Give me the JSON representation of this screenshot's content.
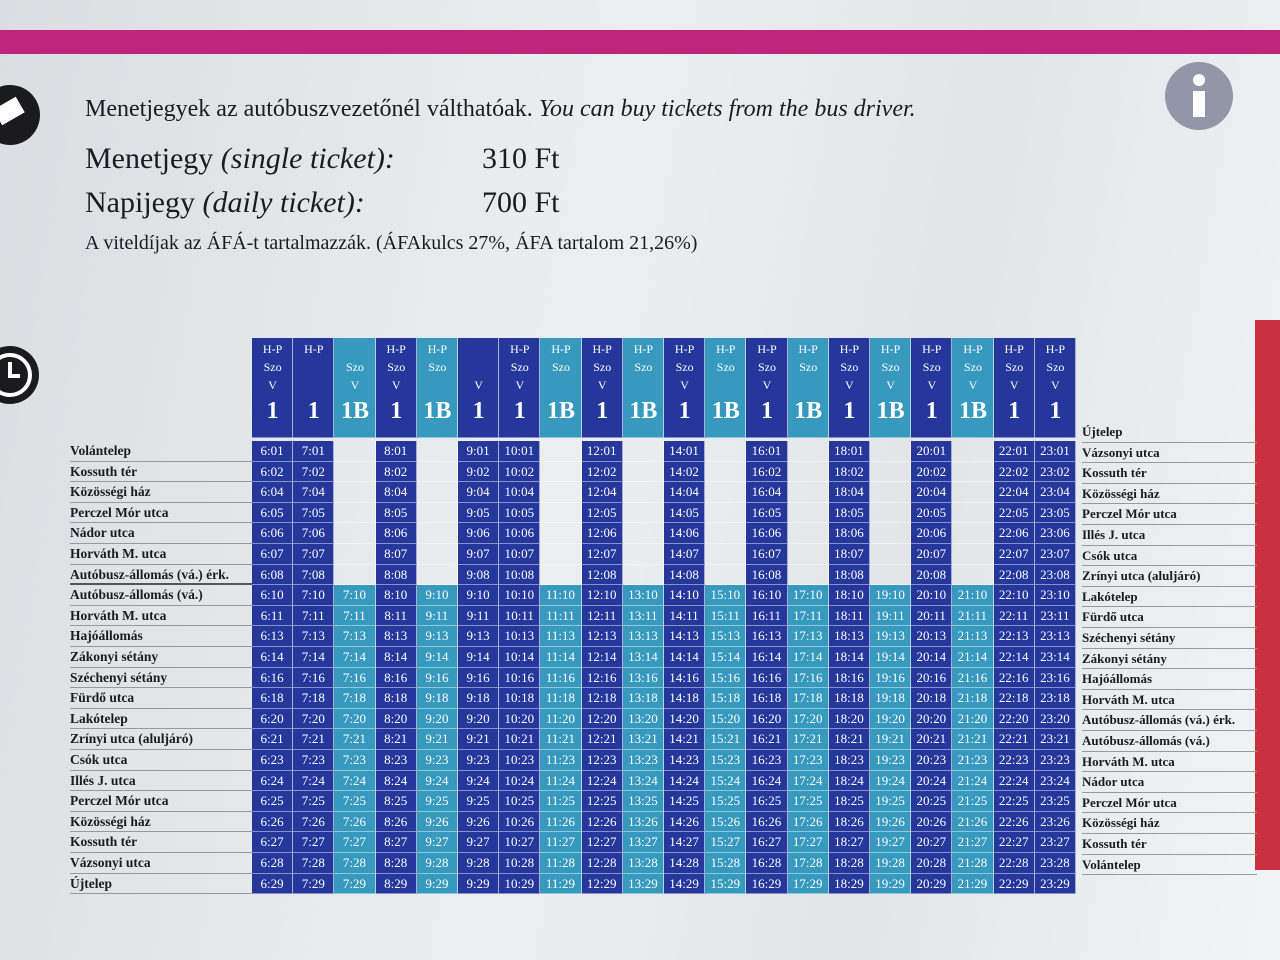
{
  "header": {
    "info": "Menetjegyek az autóbuszvezetőnél válthatóak.",
    "info_en": "You can buy tickets from the bus driver.",
    "tickets": [
      {
        "name": "Menetjegy",
        "name_en": "(single ticket):",
        "price": "310 Ft"
      },
      {
        "name": "Napijegy",
        "name_en": "(daily ticket):",
        "price": "700 Ft"
      }
    ],
    "vat_note": "A viteldíjak az ÁFÁ-t tartalmazzák. (ÁFAkulcs 27%, ÁFA tartalom 21,26%)"
  },
  "table": {
    "columns": [
      {
        "days": [
          "H-P",
          "Szo",
          "V"
        ],
        "route": "1"
      },
      {
        "days": [
          "H-P",
          null,
          null
        ],
        "route": "1"
      },
      {
        "days": [
          null,
          "Szo",
          "V"
        ],
        "route": "1B"
      },
      {
        "days": [
          "H-P",
          "Szo",
          "V"
        ],
        "route": "1"
      },
      {
        "days": [
          "H-P",
          "Szo",
          null
        ],
        "route": "1B"
      },
      {
        "days": [
          null,
          null,
          "V"
        ],
        "route": "1"
      },
      {
        "days": [
          "H-P",
          "Szo",
          "V"
        ],
        "route": "1"
      },
      {
        "days": [
          "H-P",
          "Szo",
          null
        ],
        "route": "1B"
      },
      {
        "days": [
          "H-P",
          "Szo",
          "V"
        ],
        "route": "1"
      },
      {
        "days": [
          "H-P",
          "Szo",
          null
        ],
        "route": "1B"
      },
      {
        "days": [
          "H-P",
          "Szo",
          "V"
        ],
        "route": "1"
      },
      {
        "days": [
          "H-P",
          "Szo",
          null
        ],
        "route": "1B"
      },
      {
        "days": [
          "H-P",
          "Szo",
          "V"
        ],
        "route": "1"
      },
      {
        "days": [
          "H-P",
          "Szo",
          null
        ],
        "route": "1B"
      },
      {
        "days": [
          "H-P",
          "Szo",
          "V"
        ],
        "route": "1"
      },
      {
        "days": [
          "H-P",
          "Szo",
          "V"
        ],
        "route": "1B"
      },
      {
        "days": [
          "H-P",
          "Szo",
          "V"
        ],
        "route": "1"
      },
      {
        "days": [
          "H-P",
          "Szo",
          "V"
        ],
        "route": "1B"
      },
      {
        "days": [
          "H-P",
          "Szo",
          "V"
        ],
        "route": "1"
      },
      {
        "days": [
          "H-P",
          "Szo",
          "V"
        ],
        "route": "1"
      }
    ],
    "rows": [
      {
        "stop": "Volántelep",
        "times": [
          "6:01",
          "7:01",
          null,
          "8:01",
          null,
          "9:01",
          "10:01",
          null,
          "12:01",
          null,
          "14:01",
          null,
          "16:01",
          null,
          "18:01",
          null,
          "20:01",
          null,
          "22:01",
          "23:01"
        ]
      },
      {
        "stop": "Kossuth tér",
        "times": [
          "6:02",
          "7:02",
          null,
          "8:02",
          null,
          "9:02",
          "10:02",
          null,
          "12:02",
          null,
          "14:02",
          null,
          "16:02",
          null,
          "18:02",
          null,
          "20:02",
          null,
          "22:02",
          "23:02"
        ]
      },
      {
        "stop": "Közösségi ház",
        "times": [
          "6:04",
          "7:04",
          null,
          "8:04",
          null,
          "9:04",
          "10:04",
          null,
          "12:04",
          null,
          "14:04",
          null,
          "16:04",
          null,
          "18:04",
          null,
          "20:04",
          null,
          "22:04",
          "23:04"
        ]
      },
      {
        "stop": "Perczel Mór utca",
        "times": [
          "6:05",
          "7:05",
          null,
          "8:05",
          null,
          "9:05",
          "10:05",
          null,
          "12:05",
          null,
          "14:05",
          null,
          "16:05",
          null,
          "18:05",
          null,
          "20:05",
          null,
          "22:05",
          "23:05"
        ]
      },
      {
        "stop": "Nádor utca",
        "times": [
          "6:06",
          "7:06",
          null,
          "8:06",
          null,
          "9:06",
          "10:06",
          null,
          "12:06",
          null,
          "14:06",
          null,
          "16:06",
          null,
          "18:06",
          null,
          "20:06",
          null,
          "22:06",
          "23:06"
        ]
      },
      {
        "stop": "Horváth M. utca",
        "times": [
          "6:07",
          "7:07",
          null,
          "8:07",
          null,
          "9:07",
          "10:07",
          null,
          "12:07",
          null,
          "14:07",
          null,
          "16:07",
          null,
          "18:07",
          null,
          "20:07",
          null,
          "22:07",
          "23:07"
        ]
      },
      {
        "stop": "Autóbusz-állomás (vá.) érk.",
        "times": [
          "6:08",
          "7:08",
          null,
          "8:08",
          null,
          "9:08",
          "10:08",
          null,
          "12:08",
          null,
          "14:08",
          null,
          "16:08",
          null,
          "18:08",
          null,
          "20:08",
          null,
          "22:08",
          "23:08"
        ]
      },
      {
        "stop": "Autóbusz-állomás (vá.)",
        "times": [
          "6:10",
          "7:10",
          "7:10",
          "8:10",
          "9:10",
          "9:10",
          "10:10",
          "11:10",
          "12:10",
          "13:10",
          "14:10",
          "15:10",
          "16:10",
          "17:10",
          "18:10",
          "19:10",
          "20:10",
          "21:10",
          "22:10",
          "23:10"
        ]
      },
      {
        "stop": "Horváth M. utca",
        "times": [
          "6:11",
          "7:11",
          "7:11",
          "8:11",
          "9:11",
          "9:11",
          "10:11",
          "11:11",
          "12:11",
          "13:11",
          "14:11",
          "15:11",
          "16:11",
          "17:11",
          "18:11",
          "19:11",
          "20:11",
          "21:11",
          "22:11",
          "23:11"
        ]
      },
      {
        "stop": "Hajóállomás",
        "times": [
          "6:13",
          "7:13",
          "7:13",
          "8:13",
          "9:13",
          "9:13",
          "10:13",
          "11:13",
          "12:13",
          "13:13",
          "14:13",
          "15:13",
          "16:13",
          "17:13",
          "18:13",
          "19:13",
          "20:13",
          "21:13",
          "22:13",
          "23:13"
        ]
      },
      {
        "stop": "Zákonyi sétány",
        "times": [
          "6:14",
          "7:14",
          "7:14",
          "8:14",
          "9:14",
          "9:14",
          "10:14",
          "11:14",
          "12:14",
          "13:14",
          "14:14",
          "15:14",
          "16:14",
          "17:14",
          "18:14",
          "19:14",
          "20:14",
          "21:14",
          "22:14",
          "23:14"
        ]
      },
      {
        "stop": "Széchenyi sétány",
        "times": [
          "6:16",
          "7:16",
          "7:16",
          "8:16",
          "9:16",
          "9:16",
          "10:16",
          "11:16",
          "12:16",
          "13:16",
          "14:16",
          "15:16",
          "16:16",
          "17:16",
          "18:16",
          "19:16",
          "20:16",
          "21:16",
          "22:16",
          "23:16"
        ]
      },
      {
        "stop": "Fürdő utca",
        "times": [
          "6:18",
          "7:18",
          "7:18",
          "8:18",
          "9:18",
          "9:18",
          "10:18",
          "11:18",
          "12:18",
          "13:18",
          "14:18",
          "15:18",
          "16:18",
          "17:18",
          "18:18",
          "19:18",
          "20:18",
          "21:18",
          "22:18",
          "23:18"
        ]
      },
      {
        "stop": "Lakótelep",
        "times": [
          "6:20",
          "7:20",
          "7:20",
          "8:20",
          "9:20",
          "9:20",
          "10:20",
          "11:20",
          "12:20",
          "13:20",
          "14:20",
          "15:20",
          "16:20",
          "17:20",
          "18:20",
          "19:20",
          "20:20",
          "21:20",
          "22:20",
          "23:20"
        ]
      },
      {
        "stop": "Zrínyi utca (aluljáró)",
        "times": [
          "6:21",
          "7:21",
          "7:21",
          "8:21",
          "9:21",
          "9:21",
          "10:21",
          "11:21",
          "12:21",
          "13:21",
          "14:21",
          "15:21",
          "16:21",
          "17:21",
          "18:21",
          "19:21",
          "20:21",
          "21:21",
          "22:21",
          "23:21"
        ]
      },
      {
        "stop": "Csók utca",
        "times": [
          "6:23",
          "7:23",
          "7:23",
          "8:23",
          "9:23",
          "9:23",
          "10:23",
          "11:23",
          "12:23",
          "13:23",
          "14:23",
          "15:23",
          "16:23",
          "17:23",
          "18:23",
          "19:23",
          "20:23",
          "21:23",
          "22:23",
          "23:23"
        ]
      },
      {
        "stop": "Illés J. utca",
        "times": [
          "6:24",
          "7:24",
          "7:24",
          "8:24",
          "9:24",
          "9:24",
          "10:24",
          "11:24",
          "12:24",
          "13:24",
          "14:24",
          "15:24",
          "16:24",
          "17:24",
          "18:24",
          "19:24",
          "20:24",
          "21:24",
          "22:24",
          "23:24"
        ]
      },
      {
        "stop": "Perczel Mór utca",
        "times": [
          "6:25",
          "7:25",
          "7:25",
          "8:25",
          "9:25",
          "9:25",
          "10:25",
          "11:25",
          "12:25",
          "13:25",
          "14:25",
          "15:25",
          "16:25",
          "17:25",
          "18:25",
          "19:25",
          "20:25",
          "21:25",
          "22:25",
          "23:25"
        ]
      },
      {
        "stop": "Közösségi ház",
        "times": [
          "6:26",
          "7:26",
          "7:26",
          "8:26",
          "9:26",
          "9:26",
          "10:26",
          "11:26",
          "12:26",
          "13:26",
          "14:26",
          "15:26",
          "16:26",
          "17:26",
          "18:26",
          "19:26",
          "20:26",
          "21:26",
          "22:26",
          "23:26"
        ]
      },
      {
        "stop": "Kossuth tér",
        "times": [
          "6:27",
          "7:27",
          "7:27",
          "8:27",
          "9:27",
          "9:27",
          "10:27",
          "11:27",
          "12:27",
          "13:27",
          "14:27",
          "15:27",
          "16:27",
          "17:27",
          "18:27",
          "19:27",
          "20:27",
          "21:27",
          "22:27",
          "23:27"
        ]
      },
      {
        "stop": "Vázsonyi utca",
        "times": [
          "6:28",
          "7:28",
          "7:28",
          "8:28",
          "9:28",
          "9:28",
          "10:28",
          "11:28",
          "12:28",
          "13:28",
          "14:28",
          "15:28",
          "16:28",
          "17:28",
          "18:28",
          "19:28",
          "20:28",
          "21:28",
          "22:28",
          "23:28"
        ]
      },
      {
        "stop": "Újtelep",
        "times": [
          "6:29",
          "7:29",
          "7:29",
          "8:29",
          "9:29",
          "9:29",
          "10:29",
          "11:29",
          "12:29",
          "13:29",
          "14:29",
          "15:29",
          "16:29",
          "17:29",
          "18:29",
          "19:29",
          "20:29",
          "21:29",
          "22:29",
          "23:29"
        ]
      }
    ]
  },
  "return_stops": [
    "Újtelep",
    "Vázsonyi utca",
    "Kossuth tér",
    "Közösségi ház",
    "Perczel Mór utca",
    "Illés J. utca",
    "Csók utca",
    "Zrínyi utca (aluljáró)",
    "Lakótelep",
    "Fürdő utca",
    "Széchenyi sétány",
    "Zákonyi sétány",
    "Hajóállomás",
    "Horváth M. utca",
    "Autóbusz-állomás (vá.) érk.",
    "Autóbusz-állomás (vá.)",
    "Horváth M. utca",
    "Nádor utca",
    "Perczel Mór utca",
    "Közösségi ház",
    "Kossuth tér",
    "Volántelep"
  ]
}
